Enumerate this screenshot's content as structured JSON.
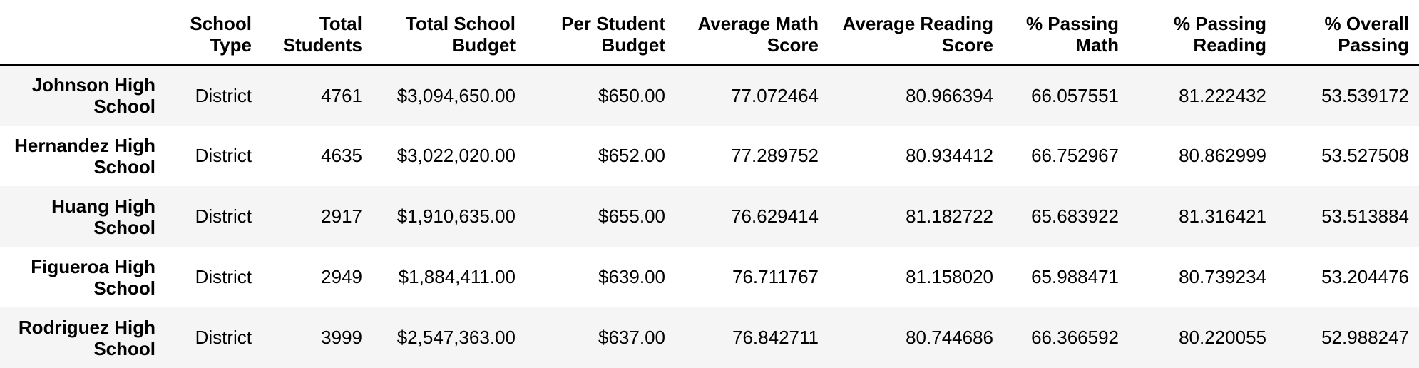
{
  "table": {
    "columns": [
      "",
      "School Type",
      "Total Students",
      "Total School Budget",
      "Per Student Budget",
      "Average Math Score",
      "Average Reading Score",
      "% Passing Math",
      "% Passing Reading",
      "% Overall Passing"
    ],
    "rows": [
      {
        "school": "Johnson High School",
        "type": "District",
        "total_students": "4761",
        "total_budget": "$3,094,650.00",
        "per_student_budget": "$650.00",
        "avg_math": "77.072464",
        "avg_reading": "80.966394",
        "pct_math": "66.057551",
        "pct_reading": "81.222432",
        "pct_overall": "53.539172"
      },
      {
        "school": "Hernandez High School",
        "type": "District",
        "total_students": "4635",
        "total_budget": "$3,022,020.00",
        "per_student_budget": "$652.00",
        "avg_math": "77.289752",
        "avg_reading": "80.934412",
        "pct_math": "66.752967",
        "pct_reading": "80.862999",
        "pct_overall": "53.527508"
      },
      {
        "school": "Huang High School",
        "type": "District",
        "total_students": "2917",
        "total_budget": "$1,910,635.00",
        "per_student_budget": "$655.00",
        "avg_math": "76.629414",
        "avg_reading": "81.182722",
        "pct_math": "65.683922",
        "pct_reading": "81.316421",
        "pct_overall": "53.513884"
      },
      {
        "school": "Figueroa High School",
        "type": "District",
        "total_students": "2949",
        "total_budget": "$1,884,411.00",
        "per_student_budget": "$639.00",
        "avg_math": "76.711767",
        "avg_reading": "81.158020",
        "pct_math": "65.988471",
        "pct_reading": "80.739234",
        "pct_overall": "53.204476"
      },
      {
        "school": "Rodriguez High School",
        "type": "District",
        "total_students": "3999",
        "total_budget": "$2,547,363.00",
        "per_student_budget": "$637.00",
        "avg_math": "76.842711",
        "avg_reading": "80.744686",
        "pct_math": "66.366592",
        "pct_reading": "80.220055",
        "pct_overall": "52.988247"
      }
    ]
  }
}
